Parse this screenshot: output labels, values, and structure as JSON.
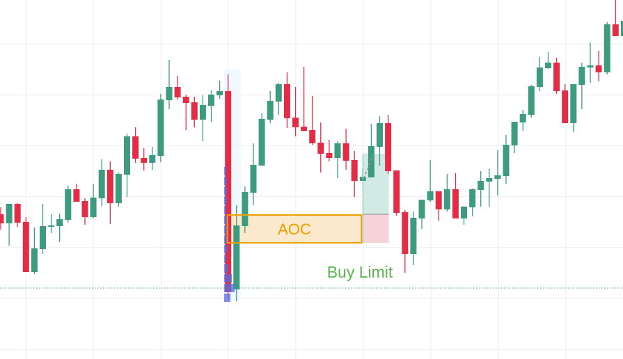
{
  "chart_data": {
    "type": "candlestick",
    "title": "",
    "xlabel": "",
    "ylabel": "",
    "grid": true,
    "ylim": [
      0,
      51.6
    ],
    "colors": {
      "up": "#3d9b80",
      "down": "#e32d46",
      "grid": "#eeeeee",
      "aoc_fill": "#fbe9cc",
      "aoc_stroke": "#f29d00",
      "aoc_text": "#f29d00",
      "target_zone": "#cde8e1",
      "stop_zone": "#f6d3d8",
      "buy_limit_text": "#5cb34f",
      "level_line": "#3d9b80",
      "profile": "#5b6be0",
      "band": "#eaf6fc"
    },
    "candles": [
      [
        20.8,
        21.8,
        18.6,
        19.5
      ],
      [
        19.5,
        22.3,
        16.3,
        22.3
      ],
      [
        22.3,
        22.4,
        19.0,
        19.6
      ],
      [
        19.7,
        20.4,
        12.5,
        12.5
      ],
      [
        12.5,
        18.9,
        12.2,
        15.9
      ],
      [
        15.8,
        22.3,
        15.1,
        19.1
      ],
      [
        19.0,
        20.8,
        18.1,
        19.2
      ],
      [
        19.1,
        20.9,
        16.8,
        20.1
      ],
      [
        20.0,
        24.9,
        19.6,
        24.4
      ],
      [
        24.4,
        25.2,
        22.6,
        22.6
      ],
      [
        22.7,
        23.1,
        19.3,
        20.4
      ],
      [
        20.4,
        25.2,
        20.2,
        23.2
      ],
      [
        23.1,
        28.7,
        22.0,
        27.2
      ],
      [
        27.2,
        28.4,
        19.4,
        22.4
      ],
      [
        22.4,
        26.8,
        21.9,
        26.6
      ],
      [
        26.5,
        32.4,
        23.3,
        32.0
      ],
      [
        32.0,
        33.3,
        28.2,
        28.8
      ],
      [
        28.9,
        30.3,
        27.1,
        28.2
      ],
      [
        28.2,
        30.5,
        27.2,
        29.3
      ],
      [
        29.2,
        38.1,
        28.3,
        37.3
      ],
      [
        37.2,
        43.0,
        35.9,
        39.1
      ],
      [
        39.1,
        40.7,
        37.3,
        37.6
      ],
      [
        37.7,
        38.0,
        32.9,
        36.8
      ],
      [
        36.9,
        37.7,
        33.3,
        34.4
      ],
      [
        34.4,
        37.9,
        31.3,
        36.5
      ],
      [
        36.4,
        38.6,
        34.1,
        38.0
      ],
      [
        37.9,
        40.0,
        37.4,
        38.5
      ],
      [
        38.5,
        40.9,
        8.6,
        9.6
      ],
      [
        10.0,
        22.1,
        8.3,
        19.2
      ],
      [
        19.1,
        24.8,
        18.1,
        24.0
      ],
      [
        23.9,
        31.0,
        22.1,
        27.9
      ],
      [
        27.8,
        35.3,
        27.8,
        34.5
      ],
      [
        34.4,
        38.5,
        33.9,
        37.1
      ],
      [
        37.0,
        39.7,
        35.1,
        39.5
      ],
      [
        39.5,
        41.2,
        33.2,
        34.6
      ],
      [
        34.7,
        39.1,
        32.0,
        33.3
      ],
      [
        33.4,
        42.0,
        32.8,
        32.8
      ],
      [
        32.9,
        37.8,
        30.8,
        31.0
      ],
      [
        31.1,
        34.0,
        26.8,
        29.5
      ],
      [
        29.6,
        31.5,
        28.4,
        28.9
      ],
      [
        28.9,
        31.3,
        26.0,
        31.0
      ],
      [
        31.0,
        33.1,
        27.2,
        28.5
      ],
      [
        28.6,
        29.9,
        23.3,
        25.6
      ],
      [
        25.6,
        27.4,
        25.6,
        26.2
      ],
      [
        26.1,
        33.8,
        26.1,
        30.6
      ],
      [
        30.5,
        34.9,
        27.8,
        33.9
      ],
      [
        33.9,
        35.1,
        26.6,
        27.0
      ],
      [
        27.1,
        27.1,
        20.6,
        21.0
      ],
      [
        21.1,
        21.4,
        12.4,
        15.1
      ],
      [
        15.1,
        21.2,
        13.5,
        20.3
      ],
      [
        20.2,
        22.9,
        18.7,
        22.9
      ],
      [
        22.8,
        28.6,
        22.6,
        24.1
      ],
      [
        24.1,
        24.1,
        19.9,
        21.5
      ],
      [
        21.5,
        26.6,
        21.2,
        24.4
      ],
      [
        24.4,
        26.7,
        20.2,
        20.2
      ],
      [
        20.2,
        22.0,
        19.3,
        21.9
      ],
      [
        21.8,
        24.5,
        20.5,
        24.4
      ],
      [
        24.3,
        27.0,
        21.9,
        25.6
      ],
      [
        25.5,
        27.3,
        21.9,
        26.0
      ],
      [
        25.9,
        30.0,
        23.5,
        26.4
      ],
      [
        26.3,
        32.2,
        25.2,
        30.8
      ],
      [
        30.7,
        34.1,
        29.6,
        34.1
      ],
      [
        34.0,
        35.8,
        32.8,
        35.2
      ],
      [
        35.1,
        39.4,
        34.7,
        39.2
      ],
      [
        39.1,
        43.4,
        38.5,
        41.9
      ],
      [
        41.8,
        44.1,
        41.7,
        42.6
      ],
      [
        42.6,
        43.3,
        38.1,
        38.5
      ],
      [
        38.6,
        39.5,
        33.9,
        33.9
      ],
      [
        33.9,
        39.5,
        32.6,
        39.5
      ],
      [
        39.4,
        42.6,
        35.9,
        42.0
      ],
      [
        41.9,
        45.5,
        39.7,
        42.2
      ],
      [
        42.2,
        44.3,
        39.9,
        41.2
      ],
      [
        41.2,
        48.4,
        40.9,
        48.1
      ],
      [
        48.1,
        51.6,
        46.4,
        46.4
      ],
      [
        46.4,
        50.4,
        46.4,
        48.6
      ]
    ],
    "volume_profile": {
      "from_price": 8.1,
      "row_height": 1.4,
      "volumes": [
        3,
        4,
        4,
        4,
        3,
        6,
        5,
        5,
        5,
        3,
        6,
        11,
        15,
        9
      ]
    },
    "aoc_zone": {
      "label": "AOC",
      "top": 20.7,
      "bottom": 16.7,
      "start_bar": 27,
      "end_bar": 43
    },
    "position": {
      "entry": 20.8,
      "target": 29.5,
      "stop": 16.7,
      "start_bar": 43,
      "end_bar": 46
    },
    "buy_limit": {
      "label": "Buy Limit",
      "price": 10.2
    }
  }
}
